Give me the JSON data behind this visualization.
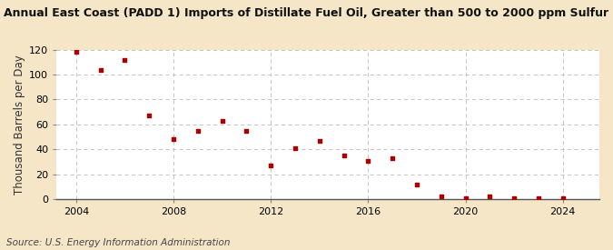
{
  "title": "Annual East Coast (PADD 1) Imports of Distillate Fuel Oil, Greater than 500 to 2000 ppm Sulfur",
  "ylabel": "Thousand Barrels per Day",
  "source": "Source: U.S. Energy Information Administration",
  "background_color": "#f5e6c8",
  "plot_background_color": "#ffffff",
  "marker_color": "#aa0000",
  "years": [
    2004,
    2005,
    2006,
    2007,
    2008,
    2009,
    2010,
    2011,
    2012,
    2013,
    2014,
    2015,
    2016,
    2017,
    2018,
    2019,
    2020,
    2021,
    2022,
    2023,
    2024
  ],
  "values": [
    118,
    104,
    112,
    67,
    48,
    55,
    63,
    55,
    27,
    41,
    47,
    35,
    31,
    33,
    12,
    2,
    1,
    2,
    1,
    1,
    1
  ],
  "ylim": [
    0,
    120
  ],
  "yticks": [
    0,
    20,
    40,
    60,
    80,
    100,
    120
  ],
  "xlim": [
    2003.2,
    2025.5
  ],
  "xticks": [
    2004,
    2008,
    2012,
    2016,
    2020,
    2024
  ],
  "title_fontsize": 9.0,
  "label_fontsize": 8.5,
  "tick_fontsize": 8.0,
  "source_fontsize": 7.5
}
